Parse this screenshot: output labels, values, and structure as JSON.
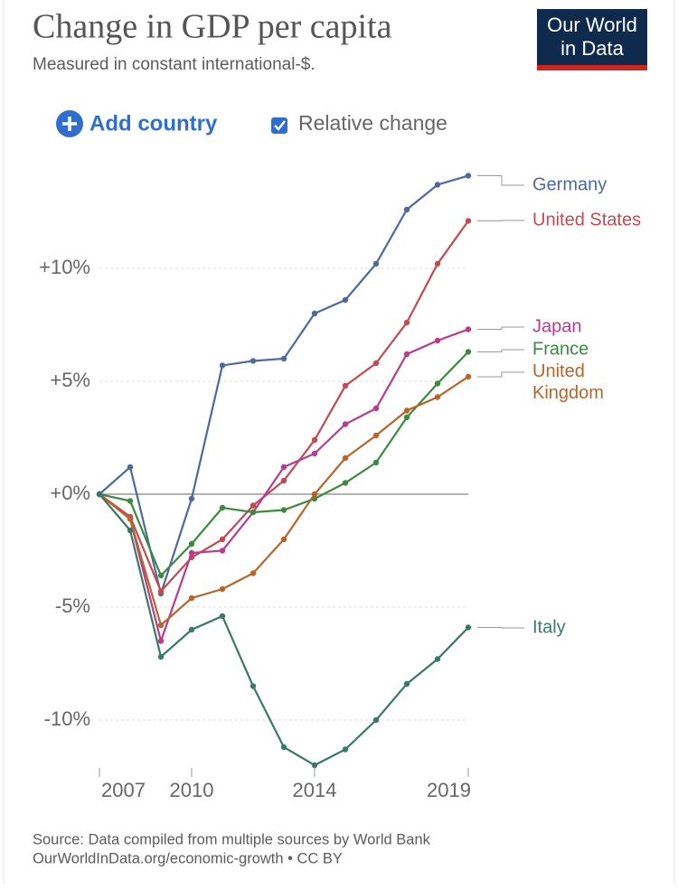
{
  "header": {
    "title": "Change in GDP per capita",
    "subtitle": "Measured in constant international-$.",
    "logo": [
      "Our World",
      "in Data"
    ]
  },
  "controls": {
    "add_country": "Add country",
    "relative_change": "Relative change"
  },
  "footer": {
    "source": "Source: Data compiled from multiple sources by World Bank",
    "link": "OurWorldInData.org/economic-growth • CC BY"
  },
  "chart_data": {
    "type": "line",
    "x": [
      2007,
      2008,
      2009,
      2010,
      2011,
      2012,
      2013,
      2014,
      2015,
      2016,
      2017,
      2018,
      2019
    ],
    "xlim": [
      2007,
      2019
    ],
    "xticks": [
      2007,
      2010,
      2014,
      2019
    ],
    "ylim": [
      -12.3,
      14.3
    ],
    "yticks": [
      {
        "value": -10,
        "label": "-10%"
      },
      {
        "value": -5,
        "label": "-5%"
      },
      {
        "value": 0,
        "label": "+0%"
      },
      {
        "value": 5,
        "label": "+5%"
      },
      {
        "value": 10,
        "label": "+10%"
      }
    ],
    "grid": true,
    "series": [
      {
        "name": "Germany",
        "color": "#4c6a9c",
        "values": [
          0,
          1.2,
          -4.4,
          -0.2,
          5.7,
          5.9,
          6.0,
          8.0,
          8.6,
          10.2,
          12.6,
          13.7,
          14.1
        ]
      },
      {
        "name": "United States",
        "color": "#c44a52",
        "values": [
          0,
          -1.0,
          -4.3,
          -2.8,
          -2.0,
          -0.5,
          0.6,
          2.4,
          4.8,
          5.8,
          7.6,
          10.2,
          12.1
        ]
      },
      {
        "name": "Japan",
        "color": "#b83b8e",
        "values": [
          0,
          -1.1,
          -6.5,
          -2.6,
          -2.5,
          -0.8,
          1.2,
          1.8,
          3.1,
          3.8,
          6.2,
          6.8,
          7.3
        ]
      },
      {
        "name": "France",
        "color": "#3b8a40",
        "values": [
          0,
          -0.3,
          -3.6,
          -2.2,
          -0.6,
          -0.8,
          -0.7,
          -0.2,
          0.5,
          1.4,
          3.4,
          4.9,
          6.3
        ]
      },
      {
        "name": "United Kingdom",
        "color": "#b8642a",
        "values": [
          0,
          -1.1,
          -5.8,
          -4.6,
          -4.2,
          -3.5,
          -2.0,
          0.0,
          1.6,
          2.6,
          3.7,
          4.3,
          5.2
        ]
      },
      {
        "name": "Italy",
        "color": "#3a7868",
        "values": [
          0,
          -1.6,
          -7.2,
          -6.0,
          -5.4,
          -8.5,
          -11.2,
          -12.0,
          -11.3,
          -10.0,
          -8.4,
          -7.3,
          -5.9
        ]
      }
    ]
  }
}
